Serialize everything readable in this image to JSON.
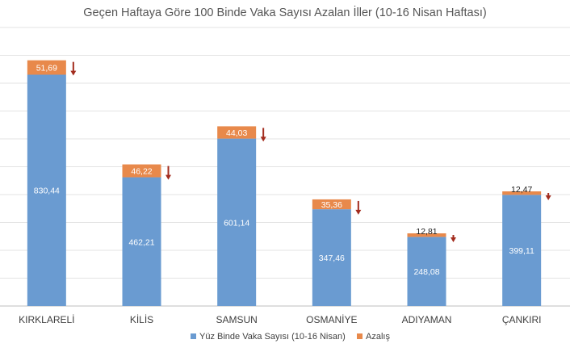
{
  "chart_data": {
    "type": "bar",
    "stacked": true,
    "title": "Geçen Haftaya Göre 100 Binde Vaka Sayısı Azalan İller (10-16 Nisan Haftası)",
    "xlabel": "",
    "ylabel": "",
    "categories": [
      "KIRKLARELİ",
      "KİLİS",
      "SAMSUN",
      "OSMANİYE",
      "ADIYAMAN",
      "ÇANKIRI"
    ],
    "series": [
      {
        "name": "Yüz Binde Vaka Sayısı (10-16 Nisan)",
        "values": [
          830.44,
          462.21,
          601.14,
          347.46,
          248.08,
          399.11
        ],
        "labels": [
          "830,44",
          "462,21",
          "601,14",
          "347,46",
          "248,08",
          "399,11"
        ],
        "color": "#6a9bd1"
      },
      {
        "name": "Azalış",
        "values": [
          51.69,
          46.22,
          44.03,
          35.36,
          12.81,
          12.47
        ],
        "labels": [
          "51,69",
          "46,22",
          "44,03",
          "35,36",
          "12,81",
          "12,47"
        ],
        "color": "#e8894b"
      }
    ],
    "ylim": [
      0,
      1000
    ],
    "grid": true,
    "legend": "bottom",
    "arrow_color": "#a32c1e"
  }
}
